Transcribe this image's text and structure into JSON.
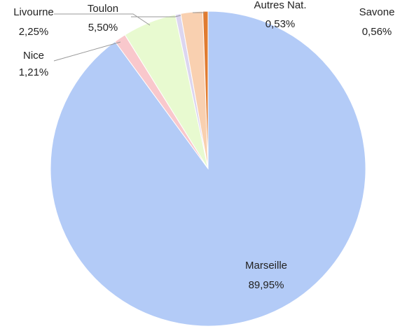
{
  "chart_data": {
    "type": "pie",
    "categories": [
      "Marseille",
      "Nice",
      "Toulon",
      "Savone",
      "Livourne",
      "Autres Nat."
    ],
    "values": [
      89.95,
      1.21,
      5.5,
      0.56,
      2.25,
      0.53
    ],
    "value_labels": [
      "89,95%",
      "1,21%",
      "5,50%",
      "0,56%",
      "2,25%",
      "0,53%"
    ],
    "colors": [
      "#b3cbf7",
      "#f9c8cc",
      "#e8fad0",
      "#dcd6f0",
      "#f9d0b0",
      "#e07b30"
    ]
  }
}
